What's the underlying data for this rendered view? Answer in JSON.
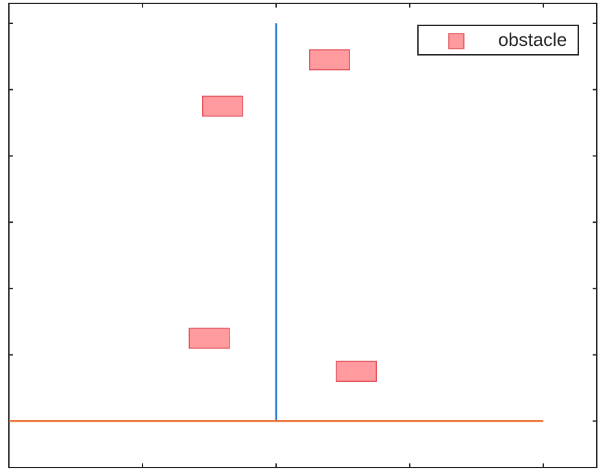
{
  "chart_data": {
    "type": "scatter",
    "title": "",
    "xlabel": "",
    "ylabel": "",
    "xlim": [
      -2,
      2.4
    ],
    "ylim": [
      -0.7,
      6.3
    ],
    "grid": false,
    "legend": {
      "placement": "top-right",
      "entries": [
        "obstacle"
      ]
    },
    "x_ticks": [
      -2,
      -1,
      0,
      1,
      2
    ],
    "y_ticks": [
      0,
      1,
      2,
      3,
      4,
      5,
      6
    ],
    "series": [
      {
        "name": "obstacle",
        "marker": "square",
        "color": "#ff9a9f",
        "edge_color": "#e0525a",
        "size": 0.3,
        "points": [
          {
            "x": 0.4,
            "y": 5.45
          },
          {
            "x": -0.4,
            "y": 4.75
          },
          {
            "x": -0.5,
            "y": 1.25
          },
          {
            "x": 0.6,
            "y": 0.75
          }
        ]
      }
    ],
    "lines": [
      {
        "color": "#1f77c9",
        "x": [
          0,
          0
        ],
        "y": [
          0,
          6
        ]
      },
      {
        "color": "#e8692a",
        "x": [
          -2,
          2
        ],
        "y": [
          0,
          0
        ]
      }
    ]
  }
}
